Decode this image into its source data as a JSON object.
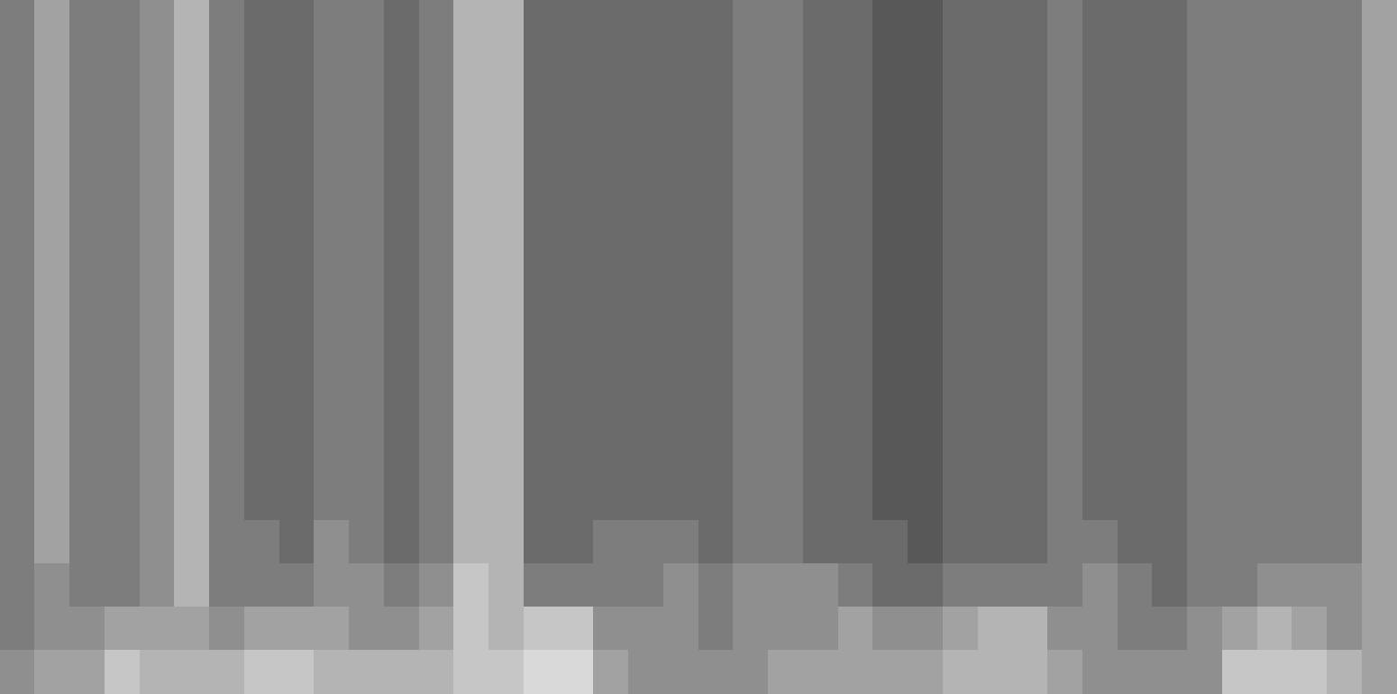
{
  "chart_data": {
    "type": "heatmap",
    "tick_labels": false,
    "cells": [
      [
        3,
        5,
        3,
        3,
        4,
        6,
        3,
        2,
        2,
        3,
        3,
        2,
        3,
        6,
        6,
        2,
        2,
        2,
        2,
        2,
        2,
        3,
        3,
        2,
        2,
        1,
        1,
        2,
        2,
        2,
        3,
        2,
        2,
        2,
        3,
        3,
        3,
        3,
        3,
        5
      ],
      [
        3,
        5,
        3,
        3,
        4,
        6,
        3,
        2,
        2,
        3,
        3,
        2,
        3,
        6,
        6,
        2,
        2,
        2,
        2,
        2,
        2,
        3,
        3,
        2,
        2,
        1,
        1,
        2,
        2,
        2,
        3,
        2,
        2,
        2,
        3,
        3,
        3,
        3,
        3,
        5
      ],
      [
        3,
        5,
        3,
        3,
        4,
        6,
        3,
        2,
        2,
        3,
        3,
        2,
        3,
        6,
        6,
        2,
        2,
        2,
        2,
        2,
        2,
        3,
        3,
        2,
        2,
        1,
        1,
        2,
        2,
        2,
        3,
        2,
        2,
        2,
        3,
        3,
        3,
        3,
        3,
        5
      ],
      [
        3,
        5,
        3,
        3,
        4,
        6,
        3,
        2,
        2,
        3,
        3,
        2,
        3,
        6,
        6,
        2,
        2,
        2,
        2,
        2,
        2,
        3,
        3,
        2,
        2,
        1,
        1,
        2,
        2,
        2,
        3,
        2,
        2,
        2,
        3,
        3,
        3,
        3,
        3,
        5
      ],
      [
        3,
        5,
        3,
        3,
        4,
        6,
        3,
        2,
        2,
        3,
        3,
        2,
        3,
        6,
        6,
        2,
        2,
        2,
        2,
        2,
        2,
        3,
        3,
        2,
        2,
        1,
        1,
        2,
        2,
        2,
        3,
        2,
        2,
        2,
        3,
        3,
        3,
        3,
        3,
        5
      ],
      [
        3,
        5,
        3,
        3,
        4,
        6,
        3,
        2,
        2,
        3,
        3,
        2,
        3,
        6,
        6,
        2,
        2,
        2,
        2,
        2,
        2,
        3,
        3,
        2,
        2,
        1,
        1,
        2,
        2,
        2,
        3,
        2,
        2,
        2,
        3,
        3,
        3,
        3,
        3,
        5
      ],
      [
        3,
        5,
        3,
        3,
        4,
        6,
        3,
        2,
        2,
        3,
        3,
        2,
        3,
        6,
        6,
        2,
        2,
        2,
        2,
        2,
        2,
        3,
        3,
        2,
        2,
        1,
        1,
        2,
        2,
        2,
        3,
        2,
        2,
        2,
        3,
        3,
        3,
        3,
        3,
        5
      ],
      [
        3,
        5,
        3,
        3,
        4,
        6,
        3,
        2,
        2,
        3,
        3,
        2,
        3,
        6,
        6,
        2,
        2,
        2,
        2,
        2,
        2,
        3,
        3,
        2,
        2,
        1,
        1,
        2,
        2,
        2,
        3,
        2,
        2,
        2,
        3,
        3,
        3,
        3,
        3,
        5
      ],
      [
        3,
        5,
        3,
        3,
        4,
        6,
        3,
        2,
        2,
        3,
        3,
        2,
        3,
        6,
        6,
        2,
        2,
        2,
        2,
        2,
        2,
        3,
        3,
        2,
        2,
        1,
        1,
        2,
        2,
        2,
        3,
        2,
        2,
        2,
        3,
        3,
        3,
        3,
        3,
        5
      ],
      [
        3,
        5,
        3,
        3,
        4,
        6,
        3,
        2,
        2,
        3,
        3,
        2,
        3,
        6,
        6,
        2,
        2,
        2,
        2,
        2,
        2,
        3,
        3,
        2,
        2,
        1,
        1,
        2,
        2,
        2,
        3,
        2,
        2,
        2,
        3,
        3,
        3,
        3,
        3,
        5
      ],
      [
        3,
        5,
        3,
        3,
        4,
        6,
        3,
        2,
        2,
        3,
        3,
        2,
        3,
        6,
        6,
        2,
        2,
        2,
        2,
        2,
        2,
        3,
        3,
        2,
        2,
        1,
        1,
        2,
        2,
        2,
        3,
        2,
        2,
        2,
        3,
        3,
        3,
        3,
        3,
        5
      ],
      [
        3,
        5,
        3,
        3,
        4,
        6,
        3,
        2,
        2,
        3,
        3,
        2,
        3,
        6,
        6,
        2,
        2,
        2,
        2,
        2,
        2,
        3,
        3,
        2,
        2,
        1,
        1,
        2,
        2,
        2,
        3,
        2,
        2,
        2,
        3,
        3,
        3,
        3,
        3,
        5
      ],
      [
        3,
        5,
        3,
        3,
        4,
        6,
        3,
        3,
        2,
        4,
        3,
        2,
        3,
        6,
        6,
        2,
        2,
        3,
        3,
        3,
        2,
        3,
        3,
        2,
        2,
        2,
        1,
        2,
        2,
        2,
        3,
        3,
        2,
        2,
        3,
        3,
        3,
        3,
        3,
        5
      ],
      [
        3,
        4,
        3,
        3,
        4,
        6,
        3,
        3,
        3,
        4,
        4,
        3,
        4,
        7,
        6,
        3,
        3,
        3,
        3,
        4,
        3,
        4,
        4,
        4,
        3,
        2,
        2,
        3,
        3,
        3,
        3,
        4,
        3,
        2,
        3,
        3,
        4,
        4,
        4,
        5
      ],
      [
        3,
        4,
        4,
        5,
        5,
        5,
        4,
        5,
        5,
        5,
        4,
        4,
        5,
        7,
        6,
        7,
        7,
        4,
        4,
        4,
        3,
        4,
        4,
        4,
        5,
        4,
        4,
        5,
        6,
        6,
        4,
        4,
        3,
        3,
        4,
        5,
        6,
        5,
        4,
        5
      ],
      [
        4,
        5,
        5,
        7,
        6,
        6,
        6,
        7,
        7,
        6,
        6,
        6,
        6,
        7,
        7,
        8,
        8,
        5,
        4,
        4,
        4,
        4,
        5,
        5,
        5,
        5,
        5,
        6,
        6,
        6,
        5,
        4,
        4,
        4,
        4,
        7,
        7,
        7,
        6,
        5
      ]
    ]
  }
}
